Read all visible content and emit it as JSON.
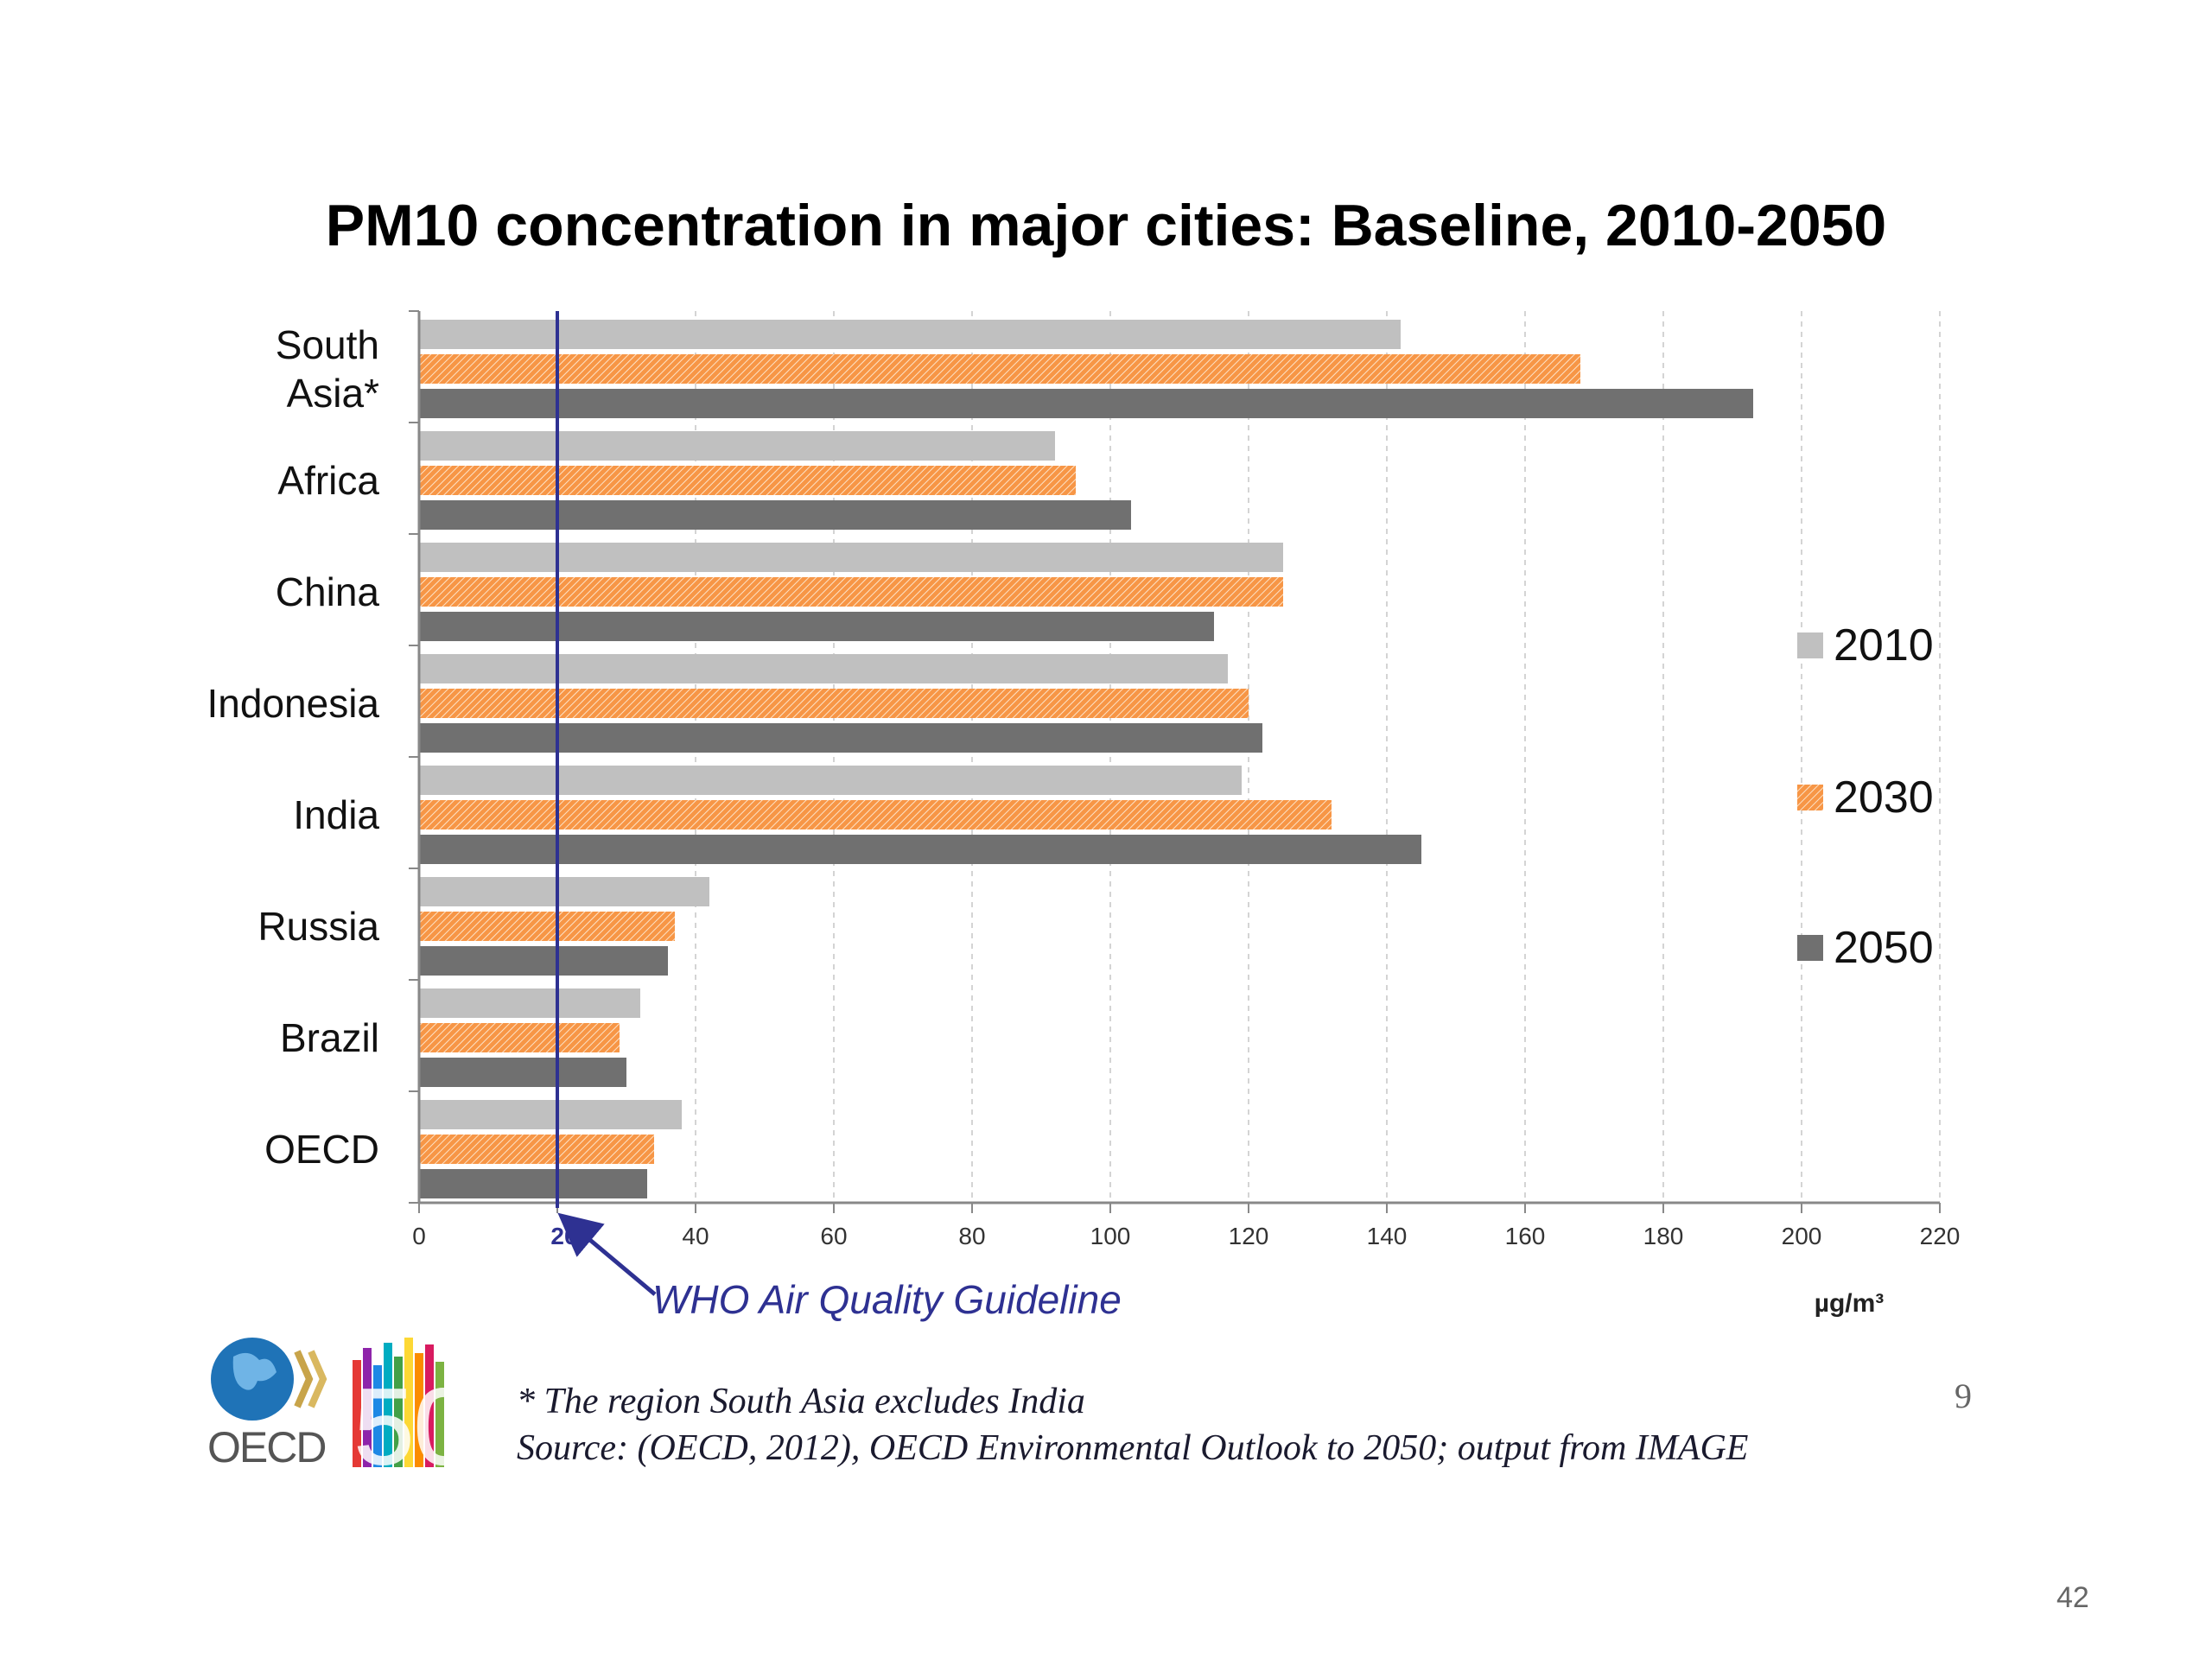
{
  "slide": {
    "title": "PM10 concentration in major cities: Baseline, 2010-2050",
    "footnote": "* The region South Asia excludes India",
    "source": "Source: (OECD, 2012), OECD Environmental Outlook  to 2050; output from IMAGE",
    "slide_number_inner": "9",
    "page_number": "42",
    "logo_text": "OECD",
    "logo_anniversary": "50"
  },
  "chart_data": {
    "type": "bar",
    "orientation": "horizontal",
    "title": "PM10 concentration in major cities: Baseline, 2010-2050",
    "categories": [
      "South Asia*",
      "Africa",
      "China",
      "Indonesia",
      "India",
      "Russia",
      "Brazil",
      "OECD"
    ],
    "category_lines": [
      [
        "South",
        "Asia*"
      ],
      [
        "Africa"
      ],
      [
        "China"
      ],
      [
        "Indonesia"
      ],
      [
        "India"
      ],
      [
        "Russia"
      ],
      [
        "Brazil"
      ],
      [
        "OECD"
      ]
    ],
    "series": [
      {
        "name": "2010",
        "color": "#c0c0c0",
        "pattern": "solid",
        "values": [
          142,
          92,
          125,
          117,
          119,
          42,
          32,
          38
        ]
      },
      {
        "name": "2030",
        "color": "#f79646",
        "pattern": "hatched",
        "values": [
          168,
          95,
          125,
          120,
          132,
          37,
          29,
          34
        ]
      },
      {
        "name": "2050",
        "color": "#707070",
        "pattern": "solid",
        "values": [
          193,
          103,
          115,
          122,
          145,
          36,
          30,
          33
        ]
      }
    ],
    "xlim": [
      0,
      220
    ],
    "xticks": [
      "0",
      "20",
      "40",
      "60",
      "80",
      "100",
      "120",
      "140",
      "160",
      "180",
      "200",
      "220"
    ],
    "xlabel": "µg/m³",
    "grid": "vertical dashed",
    "legend_position": "right",
    "reference_line": {
      "value": 20,
      "label": "WHO Air Quality Guideline",
      "color": "#2e3192"
    }
  }
}
